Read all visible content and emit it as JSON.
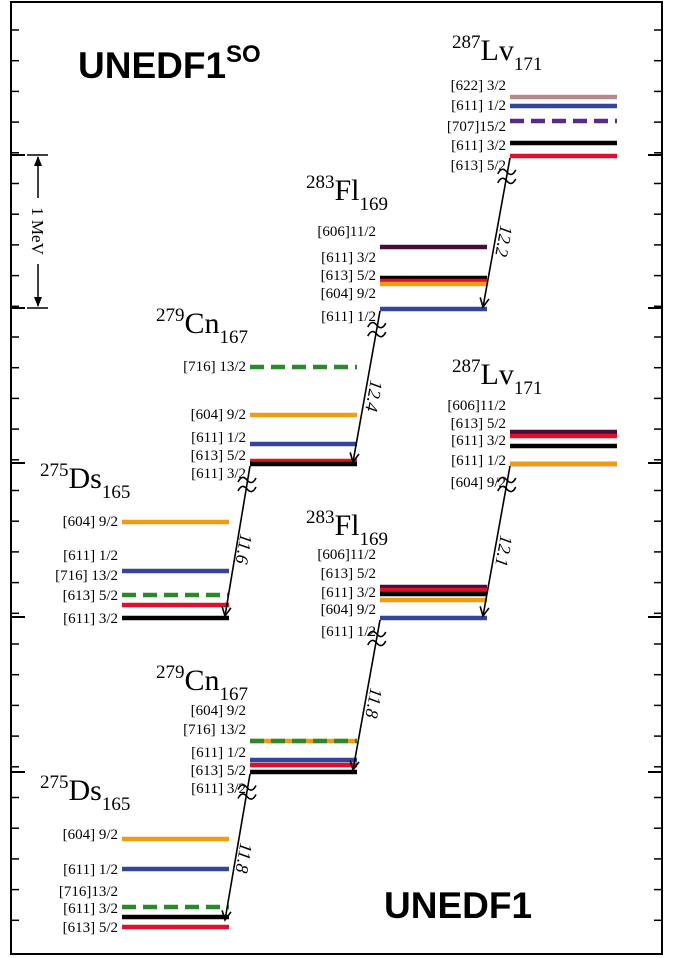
{
  "colors": {
    "red": "#e0102a",
    "black": "#000000",
    "blue": "#34449a",
    "orange": "#f09b14",
    "green": "#2a8a2a",
    "maroon": "#4a0a3a",
    "pink": "#b78a8a",
    "purple": "#5b2a88"
  },
  "top_model": {
    "text": "UNEDF1",
    "sup": "SO"
  },
  "bottom_model": {
    "text": "UNEDF1"
  },
  "scale_label": "1 MeV",
  "panels": {
    "top": {
      "Ds": {
        "mass": "275",
        "symbol": "Ds",
        "sub": "165",
        "qalpha": "11.6",
        "levels": [
          {
            "label": "[604] 9/2",
            "color": "orange",
            "style": "solid"
          },
          {
            "label": "[611] 1/2",
            "color": "blue",
            "style": "solid"
          },
          {
            "label": "[716] 13/2",
            "color": "green",
            "style": "dashed"
          },
          {
            "label": "[613] 5/2",
            "color": "red",
            "style": "solid"
          },
          {
            "label": "[611] 3/2",
            "color": "black",
            "style": "solid"
          }
        ]
      },
      "Cn": {
        "mass": "279",
        "symbol": "Cn",
        "sub": "167",
        "qalpha": "12.4",
        "levels": [
          {
            "label": "[716] 13/2",
            "color": "green",
            "style": "dashed"
          },
          {
            "label": "[604] 9/2",
            "color": "orange",
            "style": "solid"
          },
          {
            "label": "[611] 1/2",
            "color": "blue",
            "style": "solid"
          },
          {
            "label": "[613] 5/2",
            "color": "red",
            "style": "solid"
          },
          {
            "label": "[611] 3/2",
            "color": "black",
            "style": "solid"
          }
        ]
      },
      "Fl": {
        "mass": "283",
        "symbol": "Fl",
        "sub": "169",
        "qalpha": "12.2",
        "levels": [
          {
            "label": "[606]11/2",
            "color": "maroon",
            "style": "solid"
          },
          {
            "label": "[611] 3/2",
            "color": "black",
            "style": "solid"
          },
          {
            "label": "[613] 5/2",
            "color": "red",
            "style": "solid"
          },
          {
            "label": "[604] 9/2",
            "color": "orange",
            "style": "solid"
          },
          {
            "label": "[611] 1/2",
            "color": "blue",
            "style": "solid"
          }
        ]
      },
      "Lv": {
        "mass": "287",
        "symbol": "Lv",
        "sub": "171",
        "levels": [
          {
            "label": "[622] 3/2",
            "color": "pink",
            "style": "solid"
          },
          {
            "label": "[611] 1/2",
            "color": "blue",
            "style": "solid"
          },
          {
            "label": "[707]15/2",
            "color": "purple",
            "style": "dashed"
          },
          {
            "label": "[611] 3/2",
            "color": "black",
            "style": "solid"
          },
          {
            "label": "[613] 5/2",
            "color": "red",
            "style": "solid"
          }
        ]
      }
    },
    "bottom": {
      "Ds": {
        "mass": "275",
        "symbol": "Ds",
        "sub": "165",
        "qalpha": "11.8",
        "levels": [
          {
            "label": "[604] 9/2",
            "color": "orange",
            "style": "solid"
          },
          {
            "label": "[611] 1/2",
            "color": "blue",
            "style": "solid"
          },
          {
            "label": "[716]13/2",
            "color": "green",
            "style": "dashed"
          },
          {
            "label": "[611] 3/2",
            "color": "black",
            "style": "solid"
          },
          {
            "label": "[613] 5/2",
            "color": "red",
            "style": "solid"
          }
        ]
      },
      "Cn": {
        "mass": "279",
        "symbol": "Cn",
        "sub": "167",
        "qalpha": "11.8",
        "levels": [
          {
            "label": "[604] 9/2",
            "color": "orange",
            "style": "solid"
          },
          {
            "label": "[716] 13/2",
            "color": "green",
            "style": "dashed"
          },
          {
            "label": "[611] 1/2",
            "color": "blue",
            "style": "solid"
          },
          {
            "label": "[613] 5/2",
            "color": "red",
            "style": "solid"
          },
          {
            "label": "[611] 3/2",
            "color": "black",
            "style": "solid"
          }
        ]
      },
      "Fl": {
        "mass": "283",
        "symbol": "Fl",
        "sub": "169",
        "qalpha": "12.1",
        "levels": [
          {
            "label": "[606]11/2",
            "color": "maroon",
            "style": "solid"
          },
          {
            "label": "[613] 5/2",
            "color": "red",
            "style": "solid"
          },
          {
            "label": "[611] 3/2",
            "color": "black",
            "style": "solid"
          },
          {
            "label": "[604] 9/2",
            "color": "orange",
            "style": "solid"
          },
          {
            "label": "[611] 1/2",
            "color": "blue",
            "style": "solid"
          }
        ]
      },
      "Lv": {
        "mass": "287",
        "symbol": "Lv",
        "sub": "171",
        "levels": [
          {
            "label": "[606]11/2",
            "color": "maroon",
            "style": "solid"
          },
          {
            "label": "[613] 5/2",
            "color": "red",
            "style": "solid"
          },
          {
            "label": "[611] 3/2",
            "color": "black",
            "style": "solid"
          },
          {
            "label": "[611] 1/2",
            "color": "blue",
            "style": "solid"
          },
          {
            "label": "[604] 9/2",
            "color": "orange",
            "style": "solid"
          }
        ]
      }
    }
  }
}
